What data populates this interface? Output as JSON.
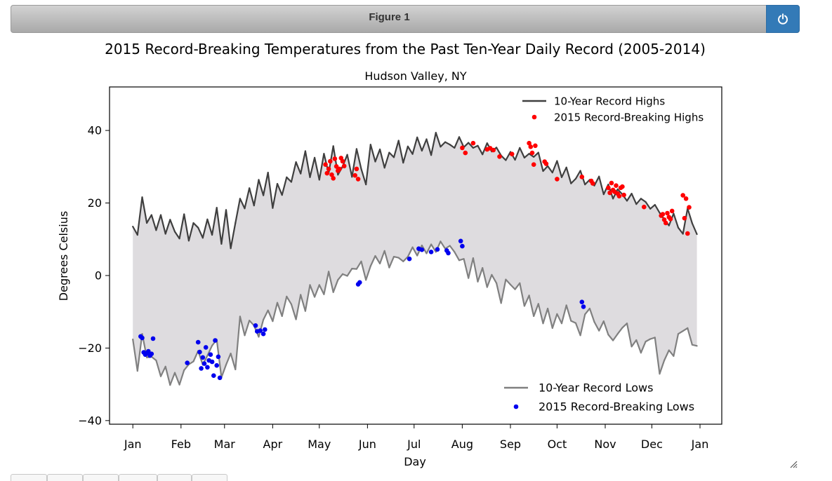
{
  "window": {
    "title": "Figure 1"
  },
  "icons": {
    "power": "power-icon",
    "resize": "resize-grip-icon"
  },
  "colors": {
    "highs_line": "#3f3f3f",
    "lows_line": "#808080",
    "high_points": "#ff0000",
    "low_points": "#0000ee",
    "fill": "#dedcdf",
    "header_button": "#337ab7"
  },
  "chart_data": {
    "type": "line",
    "title": "2015 Record-Breaking Temperatures from the Past Ten-Year Daily Record (2005-2014)",
    "subtitle": "Hudson Valley, NY",
    "xlabel": "Day",
    "ylabel": "Degrees Celsius",
    "xlim": [
      "2014-12-17",
      "2016-01-15"
    ],
    "ylim": [
      -41,
      52
    ],
    "yticks": [
      -40,
      -20,
      0,
      20,
      40
    ],
    "xticks": [
      {
        "label": "Jan",
        "date": "2015-01-01"
      },
      {
        "label": "Feb",
        "date": "2015-02-01"
      },
      {
        "label": "Mar",
        "date": "2015-03-01"
      },
      {
        "label": "Apr",
        "date": "2015-04-01"
      },
      {
        "label": "May",
        "date": "2015-05-01"
      },
      {
        "label": "Jun",
        "date": "2015-06-01"
      },
      {
        "label": "Jul",
        "date": "2015-07-01"
      },
      {
        "label": "Aug",
        "date": "2015-08-01"
      },
      {
        "label": "Sep",
        "date": "2015-09-01"
      },
      {
        "label": "Oct",
        "date": "2015-10-01"
      },
      {
        "label": "Nov",
        "date": "2015-11-01"
      },
      {
        "label": "Dec",
        "date": "2015-12-01"
      },
      {
        "label": "Jan",
        "date": "2016-01-01"
      }
    ],
    "grid": false,
    "fill_between": [
      "10-Year Record Highs",
      "10-Year Record Lows"
    ],
    "legends": [
      {
        "position": "upper-right",
        "entries": [
          {
            "label": "10-Year Record Highs",
            "kind": "line"
          },
          {
            "label": "2015 Record-Breaking Highs",
            "kind": "point"
          }
        ]
      },
      {
        "position": "lower-right",
        "entries": [
          {
            "label": "10-Year Record Lows",
            "kind": "line"
          },
          {
            "label": "2015 Record-Breaking Lows",
            "kind": "point"
          }
        ]
      }
    ],
    "series": [
      {
        "name": "10-Year Record Highs",
        "kind": "line",
        "x": [
          "2015-01-01",
          "2015-01-04",
          "2015-01-07",
          "2015-01-10",
          "2015-01-13",
          "2015-01-16",
          "2015-01-19",
          "2015-01-22",
          "2015-01-25",
          "2015-01-28",
          "2015-01-31",
          "2015-02-03",
          "2015-02-06",
          "2015-02-09",
          "2015-02-12",
          "2015-02-15",
          "2015-02-18",
          "2015-02-21",
          "2015-02-24",
          "2015-02-27",
          "2015-03-02",
          "2015-03-05",
          "2015-03-08",
          "2015-03-11",
          "2015-03-14",
          "2015-03-17",
          "2015-03-20",
          "2015-03-23",
          "2015-03-26",
          "2015-03-29",
          "2015-04-01",
          "2015-04-04",
          "2015-04-07",
          "2015-04-10",
          "2015-04-13",
          "2015-04-16",
          "2015-04-19",
          "2015-04-22",
          "2015-04-25",
          "2015-04-28",
          "2015-05-01",
          "2015-05-04",
          "2015-05-07",
          "2015-05-10",
          "2015-05-13",
          "2015-05-16",
          "2015-05-19",
          "2015-05-22",
          "2015-05-25",
          "2015-05-28",
          "2015-05-31",
          "2015-06-03",
          "2015-06-06",
          "2015-06-09",
          "2015-06-12",
          "2015-06-15",
          "2015-06-18",
          "2015-06-21",
          "2015-06-24",
          "2015-06-27",
          "2015-06-30",
          "2015-07-03",
          "2015-07-06",
          "2015-07-09",
          "2015-07-12",
          "2015-07-15",
          "2015-07-18",
          "2015-07-21",
          "2015-07-24",
          "2015-07-27",
          "2015-07-30",
          "2015-08-02",
          "2015-08-05",
          "2015-08-08",
          "2015-08-11",
          "2015-08-14",
          "2015-08-17",
          "2015-08-20",
          "2015-08-23",
          "2015-08-26",
          "2015-08-29",
          "2015-09-01",
          "2015-09-04",
          "2015-09-07",
          "2015-09-10",
          "2015-09-13",
          "2015-09-16",
          "2015-09-19",
          "2015-09-22",
          "2015-09-25",
          "2015-09-28",
          "2015-10-01",
          "2015-10-04",
          "2015-10-07",
          "2015-10-10",
          "2015-10-13",
          "2015-10-16",
          "2015-10-19",
          "2015-10-22",
          "2015-10-25",
          "2015-10-28",
          "2015-10-31",
          "2015-11-03",
          "2015-11-06",
          "2015-11-09",
          "2015-11-12",
          "2015-11-15",
          "2015-11-18",
          "2015-11-21",
          "2015-11-24",
          "2015-11-27",
          "2015-11-30",
          "2015-12-03",
          "2015-12-06",
          "2015-12-09",
          "2015-12-12",
          "2015-12-15",
          "2015-12-18",
          "2015-12-21",
          "2015-12-24",
          "2015-12-27",
          "2015-12-30"
        ],
        "values": [
          13.5,
          11.2,
          21.6,
          14.5,
          16.7,
          12.5,
          16.7,
          11.5,
          15.4,
          12.1,
          10.2,
          16.9,
          9.6,
          14.5,
          13.2,
          10.4,
          15.5,
          11.2,
          18.7,
          8.7,
          18.1,
          7.5,
          14.5,
          21.2,
          18.5,
          24.1,
          19.3,
          26.4,
          22.1,
          28.4,
          18.6,
          25.3,
          22.2,
          27.1,
          25.8,
          31.3,
          28.1,
          34.3,
          27.1,
          32.5,
          26.4,
          33.6,
          28.2,
          35.7,
          27.8,
          30.1,
          33.3,
          27.2,
          34.9,
          29.4,
          25.1,
          36.1,
          31.4,
          34.8,
          29.7,
          33.9,
          32.6,
          37.2,
          31.1,
          35.6,
          33.5,
          38.1,
          34.4,
          37.6,
          33.2,
          39.4,
          35.5,
          36.8,
          36.1,
          35.2,
          38.2,
          35.4,
          36.6,
          35.2,
          35.8,
          33.4,
          36.5,
          34.2,
          35.3,
          33.1,
          31.8,
          34.1,
          31.9,
          35.2,
          32.5,
          33.6,
          32.7,
          33.9,
          28.8,
          30.2,
          28.4,
          31.6,
          27.1,
          29.8,
          25.4,
          26.7,
          28.9,
          25.1,
          26.4,
          24.8,
          27.3,
          22.4,
          25.1,
          21.2,
          23.8,
          22.4,
          20.6,
          22.6,
          19.7,
          21.2,
          20.3,
          18.4,
          19.5,
          17.3,
          15.5,
          13.8,
          17.1,
          13.2,
          11.5,
          18.5,
          14.4,
          11.4
        ]
      },
      {
        "name": "10-Year Record Lows",
        "kind": "line",
        "x": [
          "2015-01-01",
          "2015-01-04",
          "2015-01-07",
          "2015-01-10",
          "2015-01-13",
          "2015-01-16",
          "2015-01-19",
          "2015-01-22",
          "2015-01-25",
          "2015-01-28",
          "2015-01-31",
          "2015-02-03",
          "2015-02-06",
          "2015-02-09",
          "2015-02-12",
          "2015-02-15",
          "2015-02-18",
          "2015-02-21",
          "2015-02-24",
          "2015-02-27",
          "2015-03-02",
          "2015-03-05",
          "2015-03-08",
          "2015-03-11",
          "2015-03-14",
          "2015-03-17",
          "2015-03-20",
          "2015-03-23",
          "2015-03-26",
          "2015-03-29",
          "2015-04-01",
          "2015-04-04",
          "2015-04-07",
          "2015-04-10",
          "2015-04-13",
          "2015-04-16",
          "2015-04-19",
          "2015-04-22",
          "2015-04-25",
          "2015-04-28",
          "2015-05-01",
          "2015-05-04",
          "2015-05-07",
          "2015-05-10",
          "2015-05-13",
          "2015-05-16",
          "2015-05-19",
          "2015-05-22",
          "2015-05-25",
          "2015-05-28",
          "2015-05-31",
          "2015-06-03",
          "2015-06-06",
          "2015-06-09",
          "2015-06-12",
          "2015-06-15",
          "2015-06-18",
          "2015-06-21",
          "2015-06-24",
          "2015-06-27",
          "2015-06-30",
          "2015-07-03",
          "2015-07-06",
          "2015-07-09",
          "2015-07-12",
          "2015-07-15",
          "2015-07-18",
          "2015-07-21",
          "2015-07-24",
          "2015-07-27",
          "2015-07-30",
          "2015-08-02",
          "2015-08-05",
          "2015-08-08",
          "2015-08-11",
          "2015-08-14",
          "2015-08-17",
          "2015-08-20",
          "2015-08-23",
          "2015-08-26",
          "2015-08-29",
          "2015-09-01",
          "2015-09-04",
          "2015-09-07",
          "2015-09-10",
          "2015-09-13",
          "2015-09-16",
          "2015-09-19",
          "2015-09-22",
          "2015-09-25",
          "2015-09-28",
          "2015-10-01",
          "2015-10-04",
          "2015-10-07",
          "2015-10-10",
          "2015-10-13",
          "2015-10-16",
          "2015-10-19",
          "2015-10-22",
          "2015-10-25",
          "2015-10-28",
          "2015-10-31",
          "2015-11-03",
          "2015-11-06",
          "2015-11-09",
          "2015-11-12",
          "2015-11-15",
          "2015-11-18",
          "2015-11-21",
          "2015-11-24",
          "2015-11-27",
          "2015-11-30",
          "2015-12-03",
          "2015-12-06",
          "2015-12-09",
          "2015-12-12",
          "2015-12-15",
          "2015-12-18",
          "2015-12-21",
          "2015-12-24",
          "2015-12-27",
          "2015-12-30"
        ],
        "values": [
          -17.6,
          -26.3,
          -16.1,
          -22.6,
          -22.4,
          -23.4,
          -27.8,
          -25.1,
          -30.2,
          -26.8,
          -30.1,
          -26.1,
          -24.5,
          -23.7,
          -20.8,
          -24.6,
          -22.1,
          -19.3,
          -17.7,
          -28.1,
          -24.6,
          -21.5,
          -25.9,
          -11.3,
          -16.5,
          -12.4,
          -13.8,
          -16.9,
          -12.2,
          -9.6,
          -12.6,
          -7.5,
          -11.2,
          -5.8,
          -7.9,
          -12.1,
          -5.3,
          -9.8,
          -2.6,
          -5.9,
          -2.6,
          -5.2,
          1.1,
          -4.6,
          -1.2,
          0.4,
          -0.1,
          1.9,
          1.8,
          3.9,
          -1.2,
          2.6,
          5.4,
          3.3,
          6.8,
          2.2,
          5.2,
          4.9,
          3.9,
          5.2,
          7.8,
          5.5,
          8.3,
          6.1,
          8.6,
          6.5,
          9.4,
          7.4,
          8.2,
          6.5,
          4.2,
          4.6,
          -0.7,
          4.8,
          -1.7,
          2.1,
          -3.2,
          0.2,
          -2.1,
          -7.6,
          -1.1,
          -2.5,
          -3.8,
          -2.1,
          -8.4,
          -5.5,
          -11.2,
          -7.8,
          -13.2,
          -9.1,
          -14.5,
          -10.6,
          -13.2,
          -8.2,
          -12.5,
          -13.1,
          -16.5,
          -10.7,
          -9.1,
          -12.8,
          -15.2,
          -12.6,
          -16.3,
          -17.9,
          -16.1,
          -14.4,
          -13.2,
          -19.6,
          -17.8,
          -21.3,
          -18.2,
          -17.5,
          -17.1,
          -27.1,
          -23.4,
          -20.6,
          -22.2,
          -16.1,
          -15.3,
          -14.5,
          -19.1,
          -19.4
        ]
      },
      {
        "name": "2015 Record-Breaking Highs",
        "kind": "scatter",
        "x": [
          "2015-05-05",
          "2015-05-06",
          "2015-05-07",
          "2015-05-08",
          "2015-05-09",
          "2015-05-10",
          "2015-05-11",
          "2015-05-12",
          "2015-05-13",
          "2015-05-14",
          "2015-05-15",
          "2015-05-16",
          "2015-05-17",
          "2015-05-24",
          "2015-05-25",
          "2015-05-26",
          "2015-08-01",
          "2015-08-03",
          "2015-08-08",
          "2015-08-17",
          "2015-08-19",
          "2015-08-21",
          "2015-08-25",
          "2015-09-02",
          "2015-09-13",
          "2015-09-14",
          "2015-09-15",
          "2015-09-16",
          "2015-09-17",
          "2015-09-23",
          "2015-09-24",
          "2015-10-01",
          "2015-10-17",
          "2015-10-23",
          "2015-10-24",
          "2015-11-03",
          "2015-11-04",
          "2015-11-05",
          "2015-11-06",
          "2015-11-07",
          "2015-11-08",
          "2015-11-09",
          "2015-11-10",
          "2015-11-11",
          "2015-11-12",
          "2015-11-13",
          "2015-11-26",
          "2015-12-07",
          "2015-12-08",
          "2015-12-09",
          "2015-12-10",
          "2015-12-11",
          "2015-12-12",
          "2015-12-13",
          "2015-12-14",
          "2015-12-21",
          "2015-12-22",
          "2015-12-23",
          "2015-12-24",
          "2015-12-25"
        ],
        "values": [
          30.6,
          28.2,
          29.4,
          31.5,
          27.8,
          26.8,
          32.2,
          30.1,
          28.9,
          29.4,
          32.4,
          31.5,
          30.2,
          27.6,
          29.4,
          26.6,
          35.2,
          33.8,
          36.5,
          34.8,
          35.1,
          34.6,
          32.8,
          33.5,
          36.5,
          35.5,
          33.8,
          30.6,
          35.8,
          31.4,
          30.8,
          26.6,
          27.2,
          26.1,
          25.4,
          24.2,
          22.8,
          25.5,
          23.6,
          23.1,
          24.8,
          22.6,
          21.9,
          24.2,
          24.5,
          22.2,
          18.9,
          16.5,
          16.9,
          15.4,
          14.5,
          17.2,
          16.1,
          15.6,
          17.8,
          22.1,
          15.8,
          21.2,
          11.6,
          18.8
        ]
      },
      {
        "name": "2015 Record-Breaking Lows",
        "kind": "scatter",
        "x": [
          "2015-01-06",
          "2015-01-07",
          "2015-01-08",
          "2015-01-09",
          "2015-01-10",
          "2015-01-11",
          "2015-01-12",
          "2015-01-13",
          "2015-01-14",
          "2015-02-05",
          "2015-02-12",
          "2015-02-13",
          "2015-02-14",
          "2015-02-15",
          "2015-02-16",
          "2015-02-17",
          "2015-02-18",
          "2015-02-19",
          "2015-02-20",
          "2015-02-21",
          "2015-02-22",
          "2015-02-23",
          "2015-02-24",
          "2015-02-25",
          "2015-02-26",
          "2015-03-21",
          "2015-03-22",
          "2015-03-24",
          "2015-03-26",
          "2015-03-27",
          "2015-05-26",
          "2015-05-27",
          "2015-06-28",
          "2015-07-04",
          "2015-07-06",
          "2015-07-12",
          "2015-07-16",
          "2015-07-22",
          "2015-07-23",
          "2015-07-31",
          "2015-08-01",
          "2015-10-17",
          "2015-10-18"
        ],
        "values": [
          -16.8,
          -17.2,
          -21.2,
          -21.8,
          -21.4,
          -20.9,
          -22.1,
          -21.6,
          -17.4,
          -24.1,
          -18.4,
          -21.1,
          -25.6,
          -22.6,
          -24.3,
          -19.8,
          -25.3,
          -23.4,
          -21.8,
          -23.8,
          -27.6,
          -17.9,
          -24.8,
          -22.4,
          -28.2,
          -13.8,
          -15.4,
          -15.2,
          -16.1,
          -14.9,
          -2.4,
          -1.9,
          4.6,
          7.4,
          7.1,
          6.5,
          7.2,
          6.9,
          6.2,
          9.5,
          8.1,
          -7.3,
          -8.6
        ]
      }
    ]
  }
}
